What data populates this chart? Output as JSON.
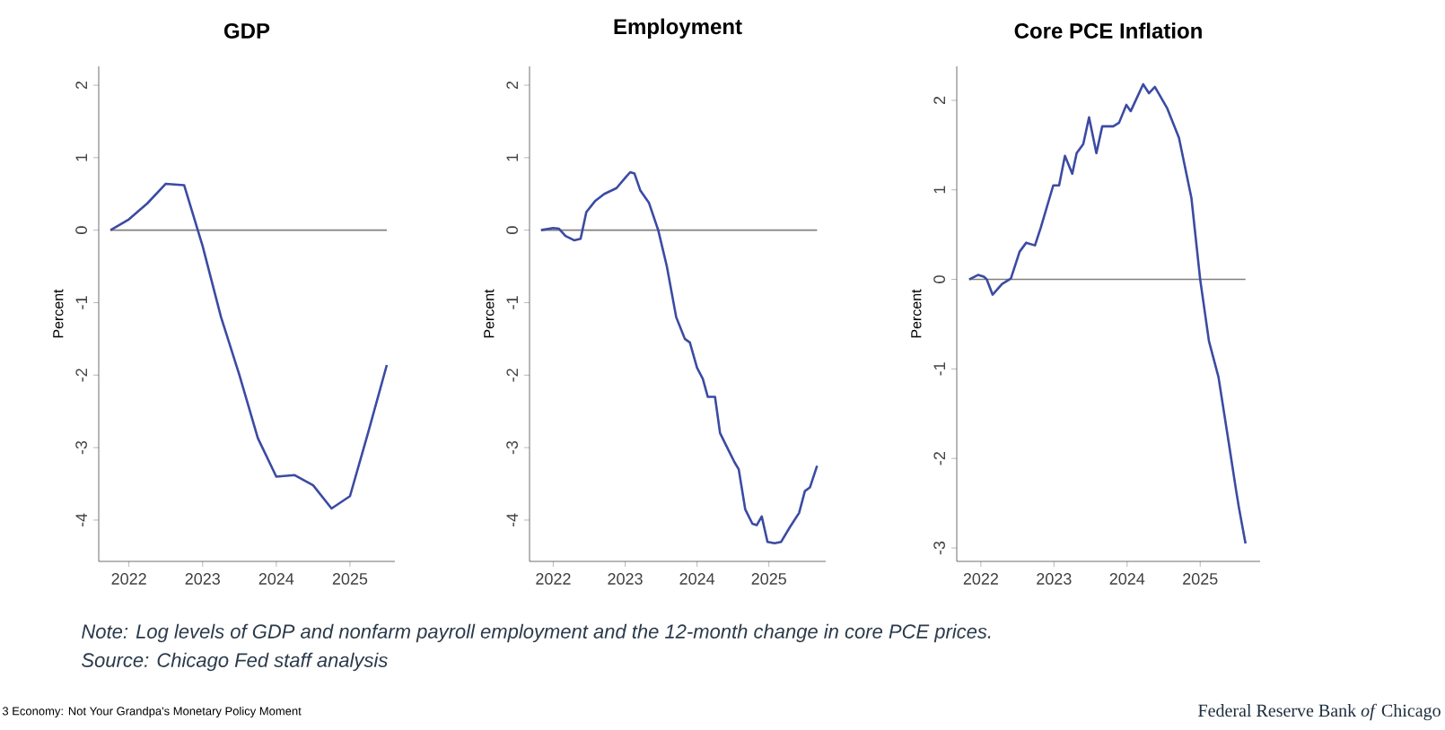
{
  "chart_data": [
    {
      "type": "line",
      "title": "GDP",
      "ylabel": "Percent",
      "xlim": [
        2021.59,
        2025.61
      ],
      "ylim": [
        -4.57,
        2.26
      ],
      "xticks": [
        2022,
        2023,
        2024,
        2025
      ],
      "yticks": [
        -4,
        -3,
        -2,
        -1,
        0,
        1,
        2
      ],
      "ref_lines": [
        {
          "axis": "y",
          "value": 0,
          "color": "#808080"
        }
      ],
      "series": [
        {
          "color": "#3b4ba3",
          "x": [
            2021.75,
            2022,
            2022.25,
            2022.5,
            2022.75,
            2023,
            2023.25,
            2023.5,
            2023.75,
            2024,
            2024.25,
            2024.5,
            2024.75,
            2025,
            2025.25,
            2025.5
          ],
          "values": [
            0,
            0.15,
            0.37,
            0.64,
            0.62,
            -0.22,
            -1.2,
            -2.0,
            -2.87,
            -3.4,
            -3.38,
            -3.52,
            -3.84,
            -3.67,
            -2.78,
            -1.86
          ]
        }
      ],
      "annotations": [
        "Note: Log levels of GDP and nonfarm payroll employment and the 12-month change in core PCE prices.",
        "Source: Chicago Fed staff analysis",
        "3 Economy: Not Your Grandpa's Monetary Policy Moment",
        "Federal Reserve Bank *of* Chicago"
      ]
    },
    {
      "type": "line",
      "title": "Employment",
      "ylabel": "Percent",
      "xlim": [
        2021.67,
        2025.79
      ],
      "ylim": [
        -4.57,
        2.26
      ],
      "xticks": [
        2022,
        2023,
        2024,
        2025
      ],
      "yticks": [
        -4,
        -3,
        -2,
        -1,
        0,
        1,
        2
      ],
      "ref_lines": [
        {
          "axis": "y",
          "value": 0,
          "color": "#808080"
        }
      ],
      "series": [
        {
          "color": "#3b4ba3",
          "x": [
            2021.83,
            2022.0,
            2022.08,
            2022.17,
            2022.29,
            2022.38,
            2022.46,
            2022.58,
            2022.71,
            2022.88,
            2023.0,
            2023.07,
            2023.13,
            2023.21,
            2023.33,
            2023.46,
            2023.58,
            2023.71,
            2023.83,
            2023.9,
            2024.0,
            2024.08,
            2024.15,
            2024.25,
            2024.32,
            2024.42,
            2024.52,
            2024.58,
            2024.67,
            2024.77,
            2024.83,
            2024.9,
            2024.98,
            2025.08,
            2025.17,
            2025.29,
            2025.42,
            2025.5,
            2025.57,
            2025.67
          ],
          "values": [
            0,
            0.03,
            0.02,
            -0.08,
            -0.14,
            -0.12,
            0.25,
            0.4,
            0.5,
            0.58,
            0.72,
            0.8,
            0.78,
            0.55,
            0.38,
            0,
            -0.5,
            -1.2,
            -1.5,
            -1.55,
            -1.9,
            -2.05,
            -2.3,
            -2.3,
            -2.8,
            -3.0,
            -3.2,
            -3.3,
            -3.85,
            -4.05,
            -4.07,
            -3.95,
            -4.3,
            -4.32,
            -4.3,
            -4.1,
            -3.9,
            -3.6,
            -3.55,
            -3.25
          ]
        }
      ]
    },
    {
      "type": "line",
      "title": "Core PCE Inflation",
      "ylabel": "Percent",
      "xlim": [
        2021.67,
        2025.82
      ],
      "ylim": [
        -3.15,
        2.38
      ],
      "xticks": [
        2022,
        2023,
        2024,
        2025
      ],
      "yticks": [
        -3,
        -2,
        -1,
        0,
        1,
        2
      ],
      "ref_lines": [
        {
          "axis": "y",
          "value": 0,
          "color": "#808080"
        }
      ],
      "series": [
        {
          "color": "#3b4ba3",
          "x": [
            2021.84,
            2021.96,
            2022.04,
            2022.08,
            2022.16,
            2022.29,
            2022.41,
            2022.53,
            2022.62,
            2022.74,
            2022.82,
            2022.99,
            2023.07,
            2023.15,
            2023.25,
            2023.31,
            2023.4,
            2023.48,
            2023.58,
            2023.66,
            2023.81,
            2023.89,
            2023.99,
            2024.05,
            2024.22,
            2024.3,
            2024.38,
            2024.55,
            2024.71,
            2024.88,
            2025.0,
            2025.12,
            2025.25,
            2025.39,
            2025.49,
            2025.53,
            2025.62
          ],
          "values": [
            0,
            0.05,
            0.03,
            0,
            -0.17,
            -0.05,
            0.01,
            0.31,
            0.41,
            0.38,
            0.58,
            1.05,
            1.05,
            1.38,
            1.18,
            1.41,
            1.51,
            1.81,
            1.41,
            1.71,
            1.71,
            1.75,
            1.95,
            1.88,
            2.18,
            2.08,
            2.15,
            1.91,
            1.58,
            0.91,
            0,
            -0.69,
            -1.09,
            -1.82,
            -2.35,
            -2.55,
            -2.95
          ]
        }
      ]
    }
  ]
}
